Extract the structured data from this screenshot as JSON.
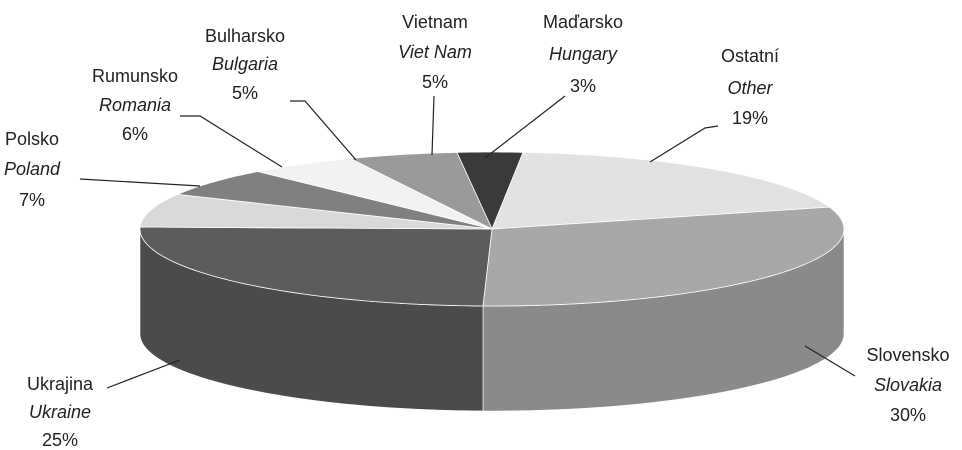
{
  "chart_data": {
    "type": "pie",
    "categories": [
      "Maďarsko",
      "Ostatní",
      "Slovensko",
      "Ukrajina",
      "Polsko",
      "Rumunsko",
      "Bulharsko",
      "Vietnam"
    ],
    "categories_en": [
      "Hungary",
      "Other",
      "Slovakia",
      "Ukraine",
      "Poland",
      "Romania",
      "Bulgaria",
      "Viet Nam"
    ],
    "values": [
      3,
      19,
      30,
      25,
      7,
      6,
      5,
      5
    ],
    "value_labels": [
      "3%",
      "19%",
      "30%",
      "25%",
      "7%",
      "6%",
      "5%",
      "5%"
    ],
    "colors": [
      "#3a3a3a",
      "#e2e2e2",
      "#a8a8a8",
      "#5c5c5c",
      "#d9d9d9",
      "#808080",
      "#f2f2f2",
      "#9a9a9a"
    ]
  }
}
